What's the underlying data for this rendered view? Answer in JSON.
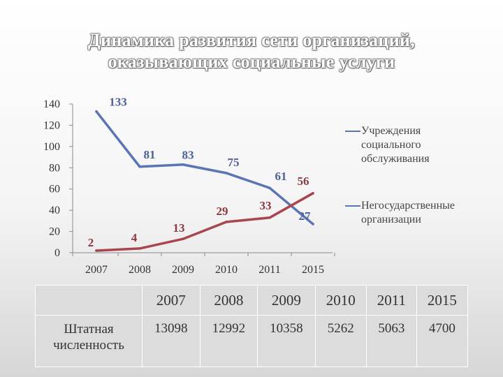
{
  "title_lines": [
    "Динамика развития сети организаций,",
    "оказывающих социальные услуги"
  ],
  "chart_data": {
    "type": "line",
    "categories": [
      "2007",
      "2008",
      "2009",
      "2010",
      "2011",
      "2015"
    ],
    "ylim": [
      0,
      140
    ],
    "yticks": [
      0,
      20,
      40,
      60,
      80,
      100,
      120,
      140
    ],
    "grid": false,
    "legend_position": "right",
    "series": [
      {
        "name": "Учреждения социального обслуживания",
        "name_lines": [
          "Учреждения",
          "социального",
          "обслуживания"
        ],
        "values": [
          133,
          81,
          83,
          75,
          61,
          27
        ],
        "labels": [
          "133",
          "81",
          "83",
          "75",
          "61",
          "27"
        ],
        "color": "#5b74b4"
      },
      {
        "name": "Негосударственные организации",
        "name_lines": [
          "Негосударственные",
          "организации"
        ],
        "values": [
          2,
          4,
          13,
          29,
          33,
          56
        ],
        "labels": [
          "2",
          "4",
          "13",
          "29",
          "33",
          "56"
        ],
        "color": "#a8464f"
      }
    ]
  },
  "table": {
    "years": [
      "2007",
      "2008",
      "2009",
      "2010",
      "2011",
      "2015"
    ],
    "row_label": "Штатная численность",
    "row_values": [
      "13098",
      "12992",
      "10358",
      "5262",
      "5063",
      "4700"
    ]
  }
}
